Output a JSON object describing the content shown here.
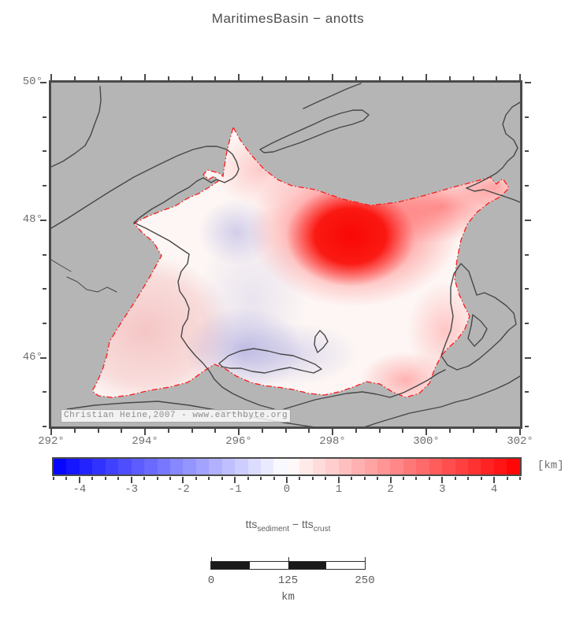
{
  "title": "MaritimesBasin − anotts",
  "map": {
    "copyright": "Christian Heine,2007 - www.earthbyte.org",
    "x_axis": {
      "min": 292,
      "max": 302,
      "major": 2,
      "minor": 0.5,
      "ticks": [
        {
          "value": 292,
          "label": "292°"
        },
        {
          "value": 294,
          "label": "294°"
        },
        {
          "value": 296,
          "label": "296°"
        },
        {
          "value": 298,
          "label": "298°"
        },
        {
          "value": 300,
          "label": "300°"
        },
        {
          "value": 302,
          "label": "302°"
        }
      ]
    },
    "y_axis": {
      "min": 45,
      "max": 50,
      "major": 2,
      "minor": 0.5,
      "ticks": [
        {
          "value": 46,
          "label": "46°"
        },
        {
          "value": 48,
          "label": "48°"
        },
        {
          "value": 50,
          "label": "50°"
        }
      ]
    }
  },
  "colorbar": {
    "min": -4.5,
    "max": 4.5,
    "step": 0.25,
    "unit": "[km]",
    "ticks": [
      {
        "value": -4,
        "label": "-4"
      },
      {
        "value": -3,
        "label": "-3"
      },
      {
        "value": -2,
        "label": "-2"
      },
      {
        "value": -1,
        "label": "-1"
      },
      {
        "value": 0,
        "label": "0"
      },
      {
        "value": 1,
        "label": "1"
      },
      {
        "value": 2,
        "label": "2"
      },
      {
        "value": 3,
        "label": "3"
      },
      {
        "value": 4,
        "label": "4"
      }
    ],
    "label": {
      "term1": "tts",
      "term1_sub": "sediment",
      "operator": " − ",
      "term2": "tts",
      "term2_sub": "crust"
    }
  },
  "scalebar": {
    "segments": 4,
    "ticks": [
      {
        "frac": 0,
        "label": "0"
      },
      {
        "frac": 0.5,
        "label": "125"
      },
      {
        "frac": 1,
        "label": "250"
      }
    ],
    "unit": "km"
  },
  "colors": {
    "map_background": "#b5b5b5",
    "frame": "#4a4a4a",
    "coastline": "#474747",
    "basin_outline": "#ff1a1a",
    "positive_core": "#ff0000",
    "negative_core": "#0000ff",
    "text": "#6e6e6e",
    "title_text": "#4d4d4d",
    "scalebar_fill": "#1a1a1a"
  }
}
